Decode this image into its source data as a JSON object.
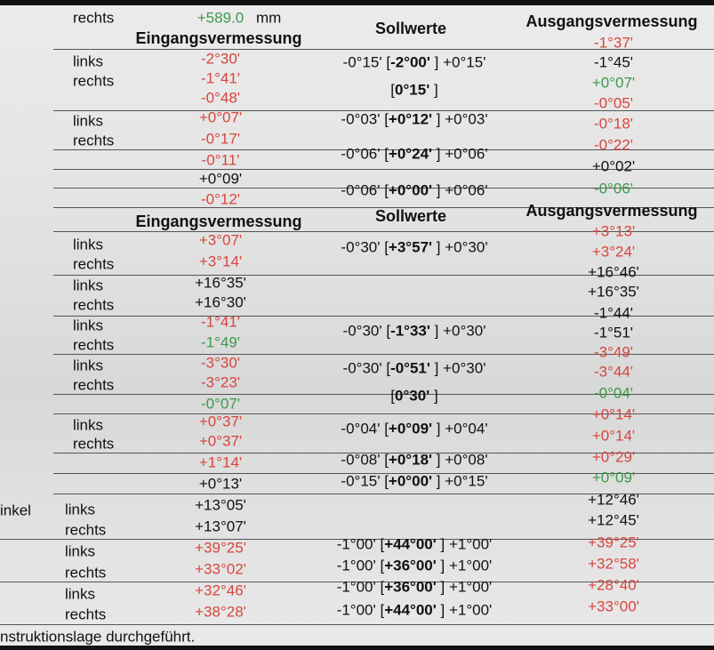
{
  "cells": [
    {
      "column": "side",
      "text": "rechts"
    },
    {
      "column": "before",
      "text": "+589.0",
      "color": "#3c9a4a"
    },
    {
      "column": "unit",
      "text": "mm"
    },
    {
      "column": "header-before",
      "text": "Eingangsvermessung"
    },
    {
      "column": "header-target",
      "text": "Sollwerte"
    },
    {
      "column": "header-after",
      "text": "Ausgangsvermessung"
    },
    {
      "column": "after",
      "text": "-1°37'",
      "color": "#d8453d"
    },
    {
      "column": "side",
      "text": "links"
    },
    {
      "column": "side",
      "text": "rechts"
    },
    {
      "column": "before",
      "text": "-2°30'",
      "color": "#d8453d"
    },
    {
      "column": "before",
      "text": "-1°41'",
      "color": "#d8453d"
    },
    {
      "column": "target",
      "parts": [
        "-0°15' [",
        "-2°00'",
        " ] +0°15'"
      ]
    },
    {
      "column": "after",
      "text": "-1°45'"
    },
    {
      "column": "after",
      "text": "+0°07'",
      "color": "#3c9a4a"
    },
    {
      "column": "target",
      "parts": [
        "[",
        "0°15'",
        " ]"
      ]
    },
    {
      "column": "before",
      "text": "-0°48'",
      "color": "#d8453d"
    },
    {
      "column": "after",
      "text": "-0°05'",
      "color": "#d8453d"
    },
    {
      "column": "side",
      "text": "links"
    },
    {
      "column": "side",
      "text": "rechts"
    },
    {
      "column": "before",
      "text": "+0°07'",
      "color": "#d8453d"
    },
    {
      "column": "before",
      "text": "-0°17'",
      "color": "#d8453d"
    },
    {
      "column": "target",
      "parts": [
        "-0°03' [",
        "+0°12'",
        " ] +0°03'"
      ]
    },
    {
      "column": "after",
      "text": "-0°18'",
      "color": "#d8453d"
    },
    {
      "column": "after",
      "text": "-0°22'",
      "color": "#d8453d"
    },
    {
      "column": "target",
      "parts": [
        "-0°06' [",
        "+0°24'",
        " ] +0°06'"
      ]
    },
    {
      "column": "before",
      "text": "-0°11'",
      "color": "#d8453d"
    },
    {
      "column": "after",
      "text": "+0°02'"
    },
    {
      "column": "before",
      "text": "+0°09'"
    },
    {
      "column": "after",
      "text": "-0°06'",
      "color": "#3c9a4a"
    },
    {
      "column": "target",
      "parts": [
        "-0°06' [",
        "+0°00'",
        " ] +0°06'"
      ]
    },
    {
      "column": "before",
      "text": "-0°12'",
      "color": "#d8453d"
    },
    {
      "column": "header-after",
      "text": "Ausgangsvermessung"
    },
    {
      "column": "header-target",
      "text": "Sollwerte"
    },
    {
      "column": "header-before",
      "text": "Eingangsvermessung"
    },
    {
      "column": "after",
      "text": "+3°13'",
      "color": "#d8453d"
    },
    {
      "column": "before",
      "text": "+3°07'",
      "color": "#d8453d"
    },
    {
      "column": "side",
      "text": "links"
    },
    {
      "column": "target",
      "parts": [
        "-0°30' [",
        "+3°57'",
        " ] +0°30'"
      ]
    },
    {
      "column": "after",
      "text": "+3°24'",
      "color": "#d8453d"
    },
    {
      "column": "before",
      "text": "+3°14'",
      "color": "#d8453d"
    },
    {
      "column": "side",
      "text": "rechts"
    },
    {
      "column": "after",
      "text": "+16°46'"
    },
    {
      "column": "before",
      "text": "+16°35'"
    },
    {
      "column": "side",
      "text": "links"
    },
    {
      "column": "after",
      "text": "+16°35'"
    },
    {
      "column": "before",
      "text": "+16°30'"
    },
    {
      "column": "side",
      "text": "rechts"
    },
    {
      "column": "after",
      "text": "-1°44'"
    },
    {
      "column": "before",
      "text": "-1°41'",
      "color": "#d8453d"
    },
    {
      "column": "side",
      "text": "links"
    },
    {
      "column": "target",
      "parts": [
        "-0°30' [",
        "-1°33'",
        " ] +0°30'"
      ]
    },
    {
      "column": "after",
      "text": "-1°51'"
    },
    {
      "column": "before",
      "text": "-1°49'",
      "color": "#3c9a4a"
    },
    {
      "column": "side",
      "text": "rechts"
    },
    {
      "column": "after",
      "text": "-3°49'",
      "color": "#d8453d"
    },
    {
      "column": "before",
      "text": "-3°30'",
      "color": "#d8453d"
    },
    {
      "column": "side",
      "text": "links"
    },
    {
      "column": "target",
      "parts": [
        "-0°30' [",
        "-0°51'",
        " ] +0°30'"
      ]
    },
    {
      "column": "after",
      "text": "-3°44'",
      "color": "#d8453d"
    },
    {
      "column": "before",
      "text": "-3°23'",
      "color": "#d8453d"
    },
    {
      "column": "side",
      "text": "rechts"
    },
    {
      "column": "after",
      "text": "-0°04'",
      "color": "#3c9a4a"
    },
    {
      "column": "target",
      "parts": [
        "[",
        "0°30'",
        " ]"
      ]
    },
    {
      "column": "before",
      "text": "-0°07'",
      "color": "#3c9a4a"
    },
    {
      "column": "after",
      "text": "+0°14'",
      "color": "#d8453d"
    },
    {
      "column": "before",
      "text": "+0°37'",
      "color": "#d8453d"
    },
    {
      "column": "side",
      "text": "links"
    },
    {
      "column": "target",
      "parts": [
        "-0°04' [",
        "+0°09'",
        " ] +0°04'"
      ]
    },
    {
      "column": "after",
      "text": "+0°14'",
      "color": "#d8453d"
    },
    {
      "column": "before",
      "text": "+0°37'",
      "color": "#d8453d"
    },
    {
      "column": "side",
      "text": "rechts"
    },
    {
      "column": "after",
      "text": "+0°29'",
      "color": "#d8453d"
    },
    {
      "column": "target",
      "parts": [
        "-0°08' [",
        "+0°18'",
        " ] +0°08'"
      ]
    },
    {
      "column": "before",
      "text": "+1°14'",
      "color": "#d8453d"
    },
    {
      "column": "after",
      "text": "+0°09'",
      "color": "#3c9a4a"
    },
    {
      "column": "target",
      "parts": [
        "-0°15' [",
        "+0°00'",
        " ] +0°15'"
      ]
    },
    {
      "column": "before",
      "text": "+0°13'"
    },
    {
      "column": "after",
      "text": "+12°46'"
    },
    {
      "column": "before",
      "text": "+13°05'"
    },
    {
      "column": "label",
      "text": "inkel"
    },
    {
      "column": "side",
      "text": "links"
    },
    {
      "column": "after",
      "text": "+12°45'"
    },
    {
      "column": "before",
      "text": "+13°07'"
    },
    {
      "column": "side",
      "text": "rechts"
    },
    {
      "column": "after",
      "text": "+39°25'",
      "color": "#d8453d"
    },
    {
      "column": "target",
      "parts": [
        "-1°00' [",
        "+44°00'",
        " ] +1°00'"
      ]
    },
    {
      "column": "before",
      "text": "+39°25'",
      "color": "#d8453d"
    },
    {
      "column": "side",
      "text": "links"
    },
    {
      "column": "after",
      "text": "+32°58'",
      "color": "#d8453d"
    },
    {
      "column": "target",
      "parts": [
        "-1°00' [",
        "+36°00'",
        " ] +1°00'"
      ]
    },
    {
      "column": "before",
      "text": "+33°02'",
      "color": "#d8453d"
    },
    {
      "column": "side",
      "text": "rechts"
    },
    {
      "column": "after",
      "text": "+28°40'",
      "color": "#d8453d"
    },
    {
      "column": "target",
      "parts": [
        "-1°00' [",
        "+36°00'",
        " ] +1°00'"
      ]
    },
    {
      "column": "before",
      "text": "+32°46'",
      "color": "#d8453d"
    },
    {
      "column": "side",
      "text": "links"
    },
    {
      "column": "after",
      "text": "+33°00'",
      "color": "#d8453d"
    },
    {
      "column": "target",
      "parts": [
        "-1°00' [",
        "+44°00'",
        " ] +1°00'"
      ]
    },
    {
      "column": "before",
      "text": "+38°28'",
      "color": "#d8453d"
    },
    {
      "column": "side",
      "text": "rechts"
    },
    {
      "column": "label",
      "text": "nstruktionslage durchgeführt."
    }
  ]
}
